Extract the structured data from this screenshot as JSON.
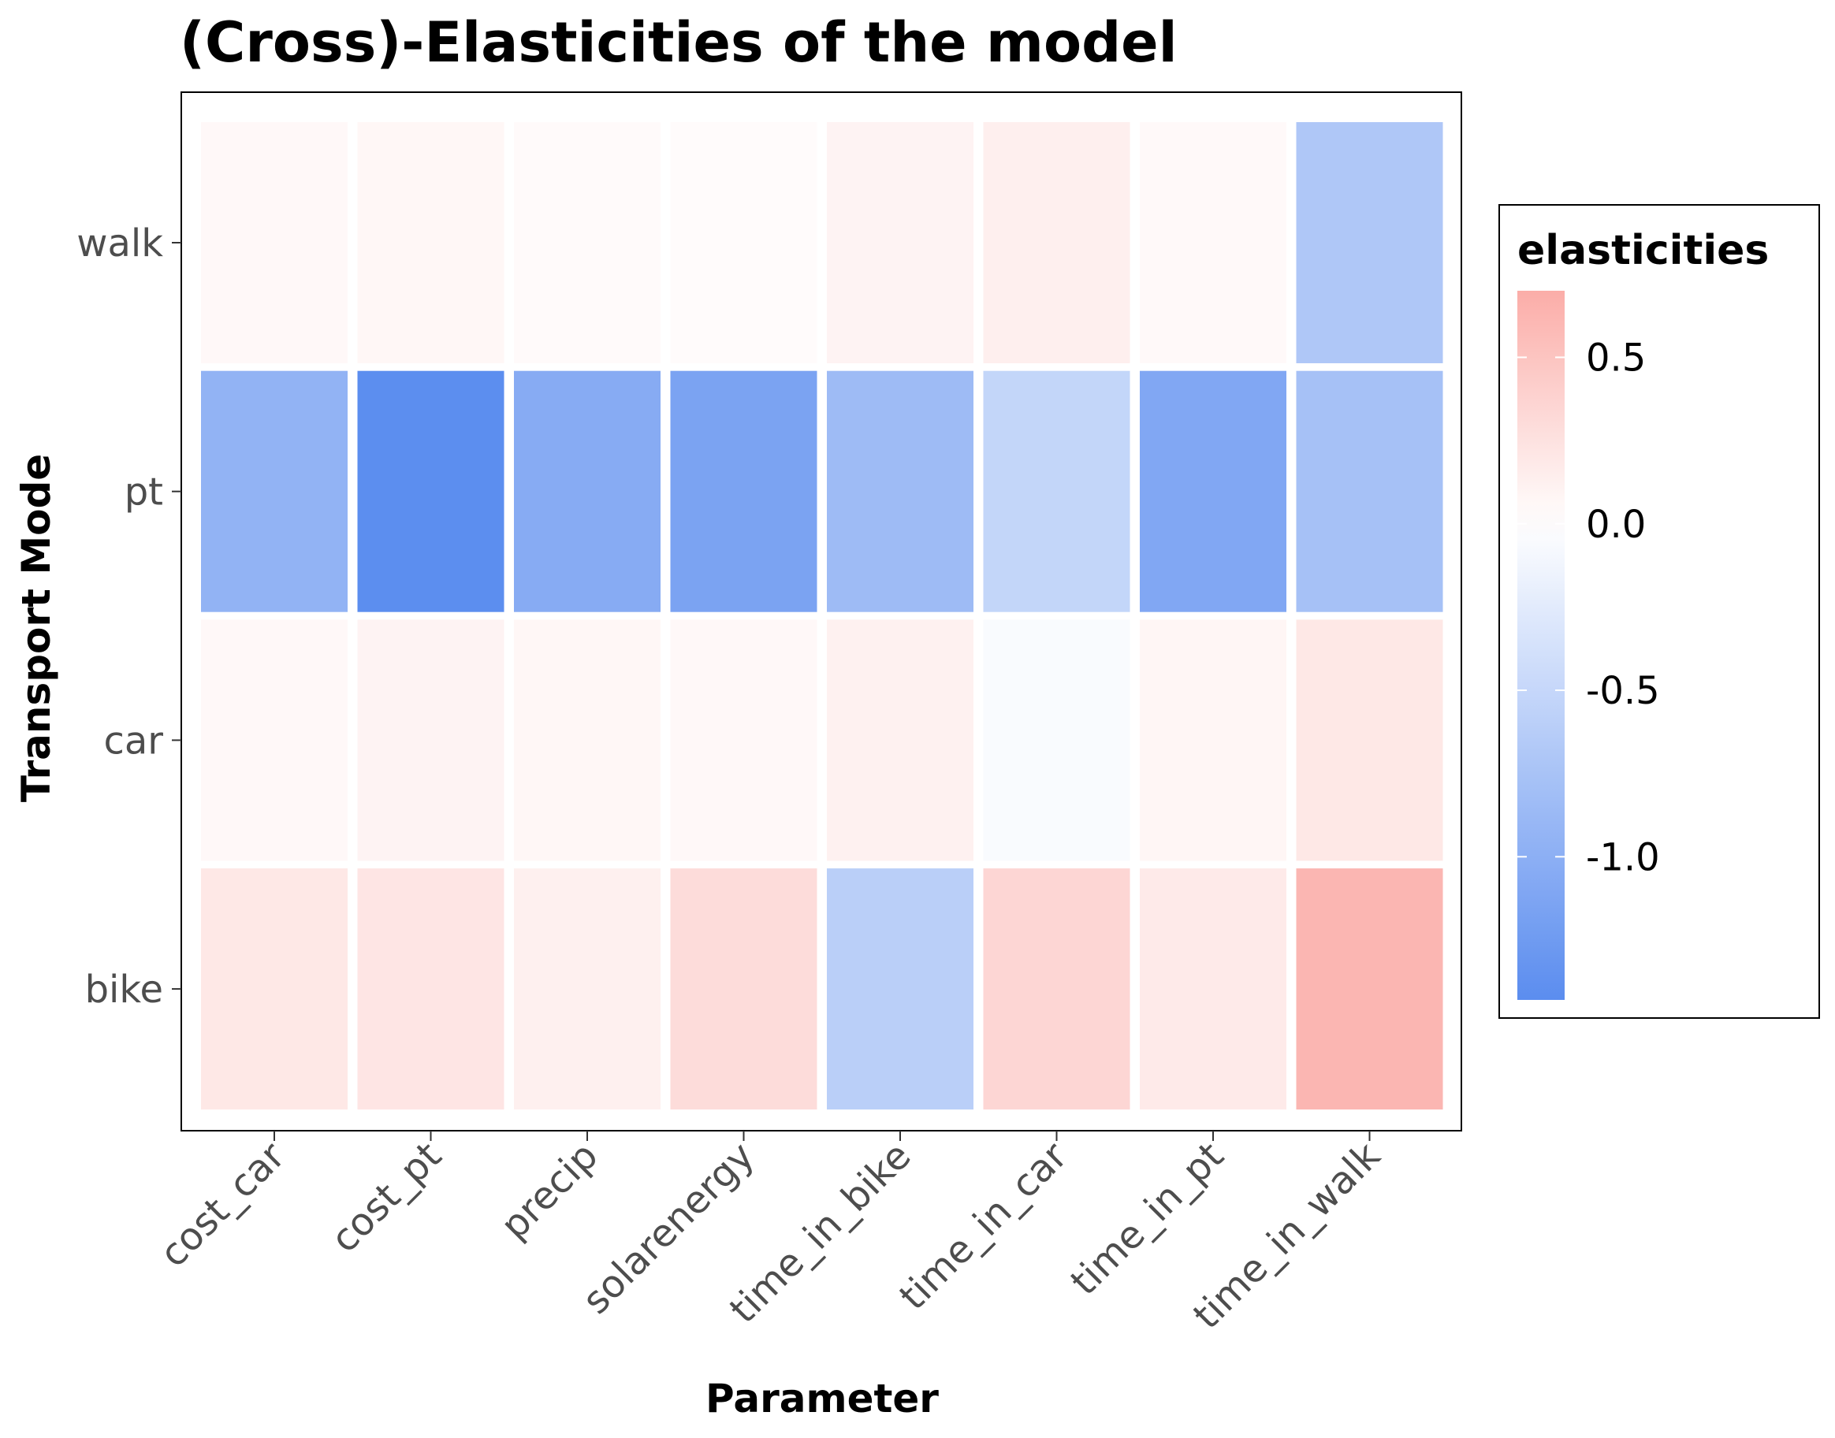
{
  "chart_data": {
    "type": "heatmap",
    "title": "(Cross)-Elasticities of the model",
    "xlabel": "Parameter",
    "ylabel": "Transport Mode",
    "x_categories": [
      "cost_car",
      "cost_pt",
      "precip",
      "solarenergy",
      "time_in_bike",
      "time_in_car",
      "time_in_pt",
      "time_in_walk"
    ],
    "y_categories": [
      "bike",
      "car",
      "pt",
      "walk"
    ],
    "values": {
      "walk": [
        0.06,
        0.07,
        0.04,
        0.03,
        0.1,
        0.14,
        0.05,
        -0.7
      ],
      "pt": [
        -0.95,
        -1.42,
        -1.05,
        -1.15,
        -0.85,
        -0.52,
        -1.1,
        -0.78
      ],
      "car": [
        0.06,
        0.1,
        0.07,
        0.06,
        0.12,
        -0.05,
        0.08,
        0.2
      ],
      "bike": [
        0.2,
        0.22,
        0.13,
        0.3,
        -0.6,
        0.35,
        0.18,
        0.62
      ]
    },
    "legend": {
      "title": "elasticities",
      "placement": "right",
      "range": [
        -1.43,
        0.7
      ],
      "ticks": [
        {
          "value": 0.5,
          "label": "0.5"
        },
        {
          "value": 0.0,
          "label": "0.0"
        },
        {
          "value": -0.5,
          "label": "-0.5"
        },
        {
          "value": -1.0,
          "label": "-1.0"
        }
      ]
    },
    "colors": {
      "low": "#5b8def",
      "mid": "#ffffff",
      "high": "#fbada8"
    },
    "grid": false
  }
}
